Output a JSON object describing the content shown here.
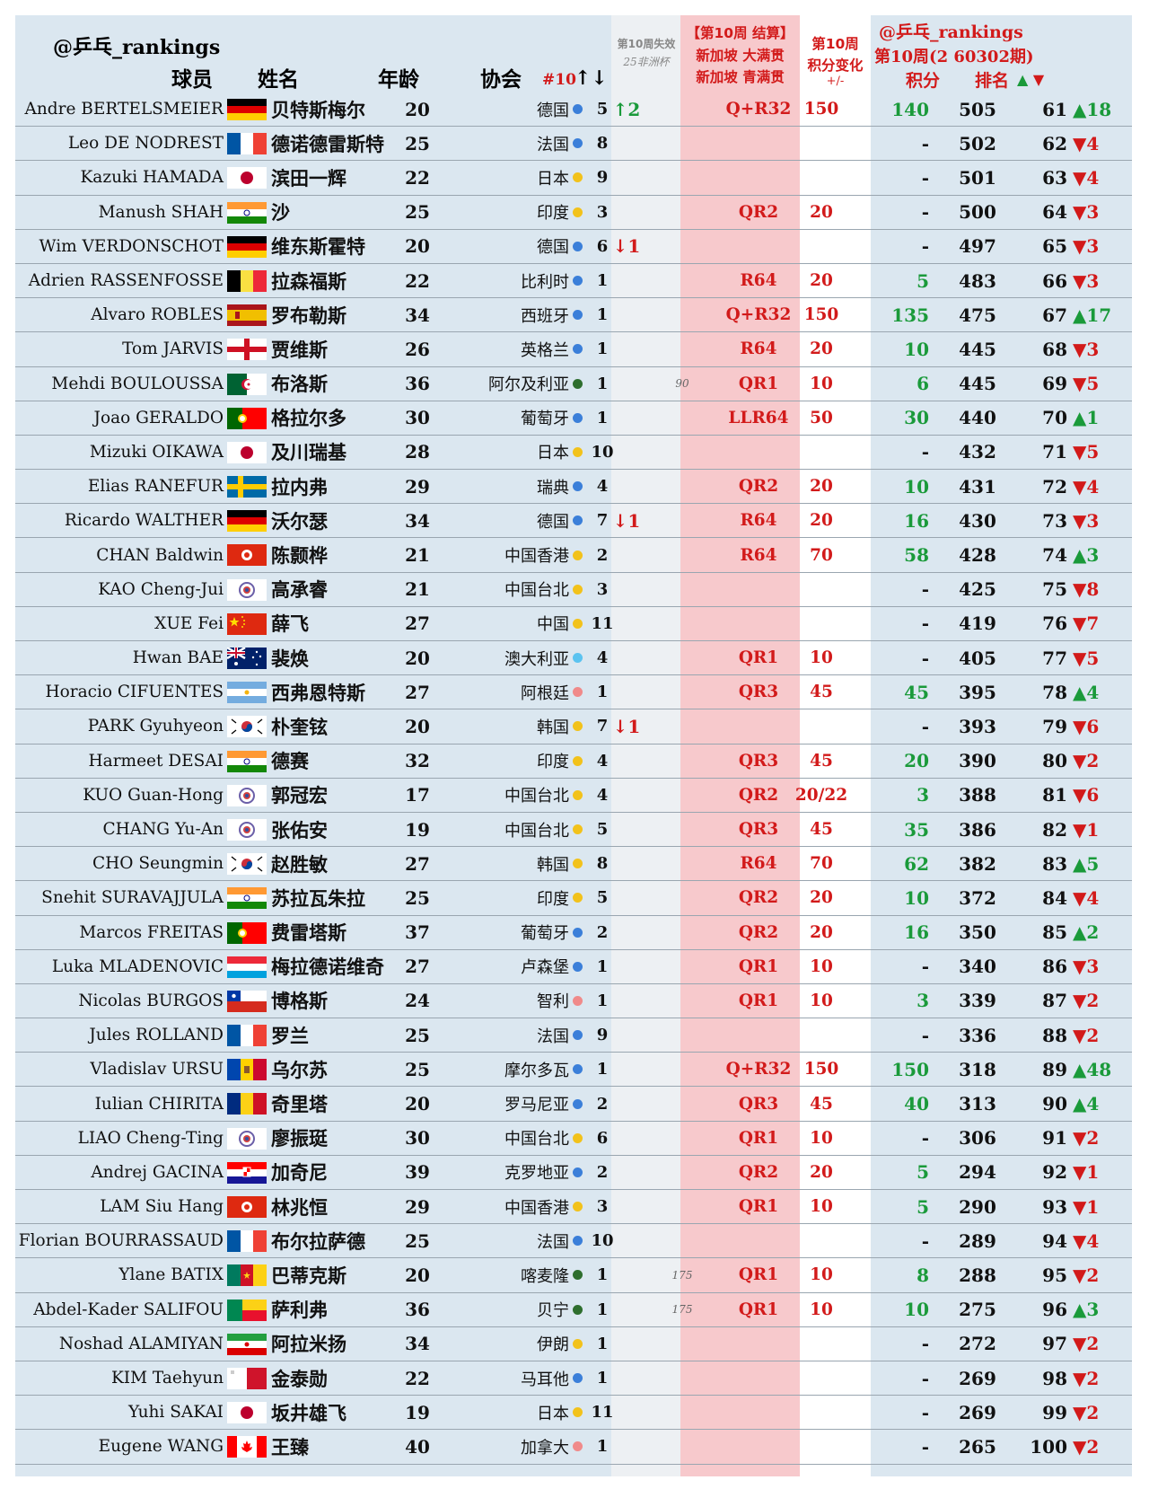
{
  "header": {
    "handle": "@乒乓_rankings",
    "col_player": "球员",
    "col_name": "姓名",
    "col_age": "年龄",
    "col_assoc": "协会",
    "col_wc": "#10",
    "col_wc_arrows": "↑↓",
    "col_expire_1": "第10周失效",
    "col_expire_2": "25非洲杯",
    "col_event_1": "【第10周 结算】",
    "col_event_2": "新加坡 大满贯",
    "col_event_3": "新加坡 青满贯",
    "col_change_1": "第10周",
    "col_change_2": "积分变化",
    "col_change_3": "+/-",
    "right_handle": "@乒乓_rankings",
    "right_week": "第10周(2 60302期)",
    "col_points": "积分",
    "col_rank": "排名",
    "col_rank_arrows": "▲ ▼"
  },
  "colors": {
    "up": "#1a9a3a",
    "down": "#d21a1a",
    "blue_dot": "#3b7fd9",
    "yellow_dot": "#f2c21b",
    "green_dot": "#2e6e2e",
    "pink_dot": "#f08a8a",
    "lightblue_dot": "#5bc3f0"
  },
  "rows": [
    {
      "name": "Andre BERTELSMEIER",
      "flag": "germany",
      "cn": "贝特斯梅尔",
      "age": "20",
      "assoc": "德国",
      "dot": "blue",
      "wc": "5",
      "wcm": "↑2",
      "wcm_dir": "up",
      "af": "",
      "stage": "Q+R32",
      "pts": "150",
      "chg": "140",
      "score": "505",
      "rank": "61",
      "mv": "▲18",
      "mv_dir": "up"
    },
    {
      "name": "Leo DE NODREST",
      "flag": "france",
      "cn": "德诺德雷斯特",
      "age": "25",
      "assoc": "法国",
      "dot": "blue",
      "wc": "8",
      "wcm": "",
      "wcm_dir": "",
      "af": "",
      "stage": "",
      "pts": "",
      "chg": "-",
      "score": "502",
      "rank": "62",
      "mv": "▼4",
      "mv_dir": "down"
    },
    {
      "name": "Kazuki HAMADA",
      "flag": "japan",
      "cn": "滨田一辉",
      "age": "22",
      "assoc": "日本",
      "dot": "yellow",
      "wc": "9",
      "wcm": "",
      "wcm_dir": "",
      "af": "",
      "stage": "",
      "pts": "",
      "chg": "-",
      "score": "501",
      "rank": "63",
      "mv": "▼4",
      "mv_dir": "down"
    },
    {
      "name": "Manush SHAH",
      "flag": "india",
      "cn": "沙",
      "age": "25",
      "assoc": "印度",
      "dot": "yellow",
      "wc": "3",
      "wcm": "",
      "wcm_dir": "",
      "af": "",
      "stage": "QR2",
      "pts": "20",
      "chg": "-",
      "score": "500",
      "rank": "64",
      "mv": "▼3",
      "mv_dir": "down"
    },
    {
      "name": "Wim VERDONSCHOT",
      "flag": "germany",
      "cn": "维东斯霍特",
      "age": "20",
      "assoc": "德国",
      "dot": "blue",
      "wc": "6",
      "wcm": "↓1",
      "wcm_dir": "down",
      "af": "",
      "stage": "",
      "pts": "",
      "chg": "-",
      "score": "497",
      "rank": "65",
      "mv": "▼3",
      "mv_dir": "down"
    },
    {
      "name": "Adrien RASSENFOSSE",
      "flag": "belgium",
      "cn": "拉森福斯",
      "age": "22",
      "assoc": "比利时",
      "dot": "blue",
      "wc": "1",
      "wcm": "",
      "wcm_dir": "",
      "af": "",
      "stage": "R64",
      "pts": "20",
      "chg": "5",
      "score": "483",
      "rank": "66",
      "mv": "▼3",
      "mv_dir": "down"
    },
    {
      "name": "Alvaro ROBLES",
      "flag": "spain",
      "cn": "罗布勒斯",
      "age": "34",
      "assoc": "西班牙",
      "dot": "blue",
      "wc": "1",
      "wcm": "",
      "wcm_dir": "",
      "af": "",
      "stage": "Q+R32",
      "pts": "150",
      "chg": "135",
      "score": "475",
      "rank": "67",
      "mv": "▲17",
      "mv_dir": "up"
    },
    {
      "name": "Tom JARVIS",
      "flag": "england",
      "cn": "贾维斯",
      "age": "26",
      "assoc": "英格兰",
      "dot": "blue",
      "wc": "1",
      "wcm": "",
      "wcm_dir": "",
      "af": "",
      "stage": "R64",
      "pts": "20",
      "chg": "10",
      "score": "445",
      "rank": "68",
      "mv": "▼3",
      "mv_dir": "down"
    },
    {
      "name": "Mehdi BOULOUSSA",
      "flag": "algeria",
      "cn": "布洛斯",
      "age": "36",
      "assoc": "阿尔及利亚",
      "dot": "green",
      "wc": "1",
      "wcm": "",
      "wcm_dir": "",
      "af": "90",
      "stage": "QR1",
      "pts": "10",
      "chg": "6",
      "score": "445",
      "rank": "69",
      "mv": "▼5",
      "mv_dir": "down"
    },
    {
      "name": "Joao GERALDO",
      "flag": "portugal",
      "cn": "格拉尔多",
      "age": "30",
      "assoc": "葡萄牙",
      "dot": "blue",
      "wc": "1",
      "wcm": "",
      "wcm_dir": "",
      "af": "",
      "stage": "LLR64",
      "pts": "50",
      "chg": "30",
      "score": "440",
      "rank": "70",
      "mv": "▲1",
      "mv_dir": "up"
    },
    {
      "name": "Mizuki OIKAWA",
      "flag": "japan",
      "cn": "及川瑞基",
      "age": "28",
      "assoc": "日本",
      "dot": "yellow",
      "wc": "10",
      "wcm": "",
      "wcm_dir": "",
      "af": "",
      "stage": "",
      "pts": "",
      "chg": "-",
      "score": "432",
      "rank": "71",
      "mv": "▼5",
      "mv_dir": "down"
    },
    {
      "name": "Elias RANEFUR",
      "flag": "sweden",
      "cn": "拉内弗",
      "age": "29",
      "assoc": "瑞典",
      "dot": "blue",
      "wc": "4",
      "wcm": "",
      "wcm_dir": "",
      "af": "",
      "stage": "QR2",
      "pts": "20",
      "chg": "10",
      "score": "431",
      "rank": "72",
      "mv": "▼4",
      "mv_dir": "down"
    },
    {
      "name": "Ricardo WALTHER",
      "flag": "germany",
      "cn": "沃尔瑟",
      "age": "34",
      "assoc": "德国",
      "dot": "blue",
      "wc": "7",
      "wcm": "↓1",
      "wcm_dir": "down",
      "af": "",
      "stage": "R64",
      "pts": "20",
      "chg": "16",
      "score": "430",
      "rank": "73",
      "mv": "▼3",
      "mv_dir": "down"
    },
    {
      "name": "CHAN Baldwin",
      "flag": "hongkong",
      "cn": "陈颢桦",
      "age": "21",
      "assoc": "中国香港",
      "dot": "yellow",
      "wc": "2",
      "wcm": "",
      "wcm_dir": "",
      "af": "",
      "stage": "R64",
      "pts": "70",
      "chg": "58",
      "score": "428",
      "rank": "74",
      "mv": "▲3",
      "mv_dir": "up"
    },
    {
      "name": "KAO Cheng-Jui",
      "flag": "taipei",
      "cn": "高承睿",
      "age": "21",
      "assoc": "中国台北",
      "dot": "yellow",
      "wc": "3",
      "wcm": "",
      "wcm_dir": "",
      "af": "",
      "stage": "",
      "pts": "",
      "chg": "-",
      "score": "425",
      "rank": "75",
      "mv": "▼8",
      "mv_dir": "down"
    },
    {
      "name": "XUE Fei",
      "flag": "china",
      "cn": "薛飞",
      "age": "27",
      "assoc": "中国",
      "dot": "yellow",
      "wc": "11",
      "wcm": "",
      "wcm_dir": "",
      "af": "",
      "stage": "",
      "pts": "",
      "chg": "-",
      "score": "419",
      "rank": "76",
      "mv": "▼7",
      "mv_dir": "down"
    },
    {
      "name": "Hwan BAE",
      "flag": "australia",
      "cn": "裴焕",
      "age": "20",
      "assoc": "澳大利亚",
      "dot": "lightblue",
      "wc": "4",
      "wcm": "",
      "wcm_dir": "",
      "af": "",
      "stage": "QR1",
      "pts": "10",
      "chg": "-",
      "score": "405",
      "rank": "77",
      "mv": "▼5",
      "mv_dir": "down"
    },
    {
      "name": "Horacio CIFUENTES",
      "flag": "argentina",
      "cn": "西弗恩特斯",
      "age": "27",
      "assoc": "阿根廷",
      "dot": "pink",
      "wc": "1",
      "wcm": "",
      "wcm_dir": "",
      "af": "",
      "stage": "QR3",
      "pts": "45",
      "chg": "45",
      "score": "395",
      "rank": "78",
      "mv": "▲4",
      "mv_dir": "up"
    },
    {
      "name": "PARK Gyuhyeon",
      "flag": "korea",
      "cn": "朴奎铉",
      "age": "20",
      "assoc": "韩国",
      "dot": "yellow",
      "wc": "7",
      "wcm": "↓1",
      "wcm_dir": "down",
      "af": "",
      "stage": "",
      "pts": "",
      "chg": "-",
      "score": "393",
      "rank": "79",
      "mv": "▼6",
      "mv_dir": "down"
    },
    {
      "name": "Harmeet DESAI",
      "flag": "india",
      "cn": "德赛",
      "age": "32",
      "assoc": "印度",
      "dot": "yellow",
      "wc": "4",
      "wcm": "",
      "wcm_dir": "",
      "af": "",
      "stage": "QR3",
      "pts": "45",
      "chg": "20",
      "score": "390",
      "rank": "80",
      "mv": "▼2",
      "mv_dir": "down"
    },
    {
      "name": "KUO Guan-Hong",
      "flag": "taipei",
      "cn": "郭冠宏",
      "age": "17",
      "assoc": "中国台北",
      "dot": "yellow",
      "wc": "4",
      "wcm": "",
      "wcm_dir": "",
      "af": "",
      "stage": "QR2",
      "pts": "20/22",
      "chg": "3",
      "score": "388",
      "rank": "81",
      "mv": "▼6",
      "mv_dir": "down"
    },
    {
      "name": "CHANG Yu-An",
      "flag": "taipei",
      "cn": "张佑安",
      "age": "19",
      "assoc": "中国台北",
      "dot": "yellow",
      "wc": "5",
      "wcm": "",
      "wcm_dir": "",
      "af": "",
      "stage": "QR3",
      "pts": "45",
      "chg": "35",
      "score": "386",
      "rank": "82",
      "mv": "▼1",
      "mv_dir": "down"
    },
    {
      "name": "CHO Seungmin",
      "flag": "korea",
      "cn": "赵胜敏",
      "age": "27",
      "assoc": "韩国",
      "dot": "yellow",
      "wc": "8",
      "wcm": "",
      "wcm_dir": "",
      "af": "",
      "stage": "R64",
      "pts": "70",
      "chg": "62",
      "score": "382",
      "rank": "83",
      "mv": "▲5",
      "mv_dir": "up"
    },
    {
      "name": "Snehit SURAVAJJULA",
      "flag": "india",
      "cn": "苏拉瓦朱拉",
      "age": "25",
      "assoc": "印度",
      "dot": "yellow",
      "wc": "5",
      "wcm": "",
      "wcm_dir": "",
      "af": "",
      "stage": "QR2",
      "pts": "20",
      "chg": "10",
      "score": "372",
      "rank": "84",
      "mv": "▼4",
      "mv_dir": "down"
    },
    {
      "name": "Marcos FREITAS",
      "flag": "portugal",
      "cn": "费雷塔斯",
      "age": "37",
      "assoc": "葡萄牙",
      "dot": "blue",
      "wc": "2",
      "wcm": "",
      "wcm_dir": "",
      "af": "",
      "stage": "QR2",
      "pts": "20",
      "chg": "16",
      "score": "350",
      "rank": "85",
      "mv": "▲2",
      "mv_dir": "up"
    },
    {
      "name": "Luka MLADENOVIC",
      "flag": "luxembourg",
      "cn": "梅拉德诺维奇",
      "age": "27",
      "assoc": "卢森堡",
      "dot": "blue",
      "wc": "1",
      "wcm": "",
      "wcm_dir": "",
      "af": "",
      "stage": "QR1",
      "pts": "10",
      "chg": "-",
      "score": "340",
      "rank": "86",
      "mv": "▼3",
      "mv_dir": "down"
    },
    {
      "name": "Nicolas BURGOS",
      "flag": "chile",
      "cn": "博格斯",
      "age": "24",
      "assoc": "智利",
      "dot": "pink",
      "wc": "1",
      "wcm": "",
      "wcm_dir": "",
      "af": "",
      "stage": "QR1",
      "pts": "10",
      "chg": "3",
      "score": "339",
      "rank": "87",
      "mv": "▼2",
      "mv_dir": "down"
    },
    {
      "name": "Jules ROLLAND",
      "flag": "france",
      "cn": "罗兰",
      "age": "25",
      "assoc": "法国",
      "dot": "blue",
      "wc": "9",
      "wcm": "",
      "wcm_dir": "",
      "af": "",
      "stage": "",
      "pts": "",
      "chg": "-",
      "score": "336",
      "rank": "88",
      "mv": "▼2",
      "mv_dir": "down"
    },
    {
      "name": "Vladislav URSU",
      "flag": "moldova",
      "cn": "乌尔苏",
      "age": "25",
      "assoc": "摩尔多瓦",
      "dot": "blue",
      "wc": "1",
      "wcm": "",
      "wcm_dir": "",
      "af": "",
      "stage": "Q+R32",
      "pts": "150",
      "chg": "150",
      "score": "318",
      "rank": "89",
      "mv": "▲48",
      "mv_dir": "up"
    },
    {
      "name": "Iulian CHIRITA",
      "flag": "romania",
      "cn": "奇里塔",
      "age": "20",
      "assoc": "罗马尼亚",
      "dot": "blue",
      "wc": "2",
      "wcm": "",
      "wcm_dir": "",
      "af": "",
      "stage": "QR3",
      "pts": "45",
      "chg": "40",
      "score": "313",
      "rank": "90",
      "mv": "▲4",
      "mv_dir": "up"
    },
    {
      "name": "LIAO Cheng-Ting",
      "flag": "taipei",
      "cn": "廖振珽",
      "age": "30",
      "assoc": "中国台北",
      "dot": "yellow",
      "wc": "6",
      "wcm": "",
      "wcm_dir": "",
      "af": "",
      "stage": "QR1",
      "pts": "10",
      "chg": "-",
      "score": "306",
      "rank": "91",
      "mv": "▼2",
      "mv_dir": "down"
    },
    {
      "name": "Andrej GACINA",
      "flag": "croatia",
      "cn": "加奇尼",
      "age": "39",
      "assoc": "克罗地亚",
      "dot": "blue",
      "wc": "2",
      "wcm": "",
      "wcm_dir": "",
      "af": "",
      "stage": "QR2",
      "pts": "20",
      "chg": "5",
      "score": "294",
      "rank": "92",
      "mv": "▼1",
      "mv_dir": "down"
    },
    {
      "name": "LAM Siu Hang",
      "flag": "hongkong",
      "cn": "林兆恒",
      "age": "29",
      "assoc": "中国香港",
      "dot": "yellow",
      "wc": "3",
      "wcm": "",
      "wcm_dir": "",
      "af": "",
      "stage": "QR1",
      "pts": "10",
      "chg": "5",
      "score": "290",
      "rank": "93",
      "mv": "▼1",
      "mv_dir": "down"
    },
    {
      "name": "Florian BOURRASSAUD",
      "flag": "france",
      "cn": "布尔拉萨德",
      "age": "25",
      "assoc": "法国",
      "dot": "blue",
      "wc": "10",
      "wcm": "",
      "wcm_dir": "",
      "af": "",
      "stage": "",
      "pts": "",
      "chg": "-",
      "score": "289",
      "rank": "94",
      "mv": "▼4",
      "mv_dir": "down"
    },
    {
      "name": "Ylane BATIX",
      "flag": "cameroon",
      "cn": "巴蒂克斯",
      "age": "20",
      "assoc": "喀麦隆",
      "dot": "green",
      "wc": "1",
      "wcm": "",
      "wcm_dir": "",
      "af": "175",
      "stage": "QR1",
      "pts": "10",
      "chg": "8",
      "score": "288",
      "rank": "95",
      "mv": "▼2",
      "mv_dir": "down"
    },
    {
      "name": "Abdel-Kader SALIFOU",
      "flag": "benin",
      "cn": "萨利弗",
      "age": "36",
      "assoc": "贝宁",
      "dot": "green",
      "wc": "1",
      "wcm": "",
      "wcm_dir": "",
      "af": "175",
      "stage": "QR1",
      "pts": "10",
      "chg": "10",
      "score": "275",
      "rank": "96",
      "mv": "▲3",
      "mv_dir": "up"
    },
    {
      "name": "Noshad ALAMIYAN",
      "flag": "iran",
      "cn": "阿拉米扬",
      "age": "34",
      "assoc": "伊朗",
      "dot": "yellow",
      "wc": "1",
      "wcm": "",
      "wcm_dir": "",
      "af": "",
      "stage": "",
      "pts": "",
      "chg": "-",
      "score": "272",
      "rank": "97",
      "mv": "▼2",
      "mv_dir": "down"
    },
    {
      "name": "KIM Taehyun",
      "flag": "malta",
      "cn": "金泰勋",
      "age": "22",
      "assoc": "马耳他",
      "dot": "blue",
      "wc": "1",
      "wcm": "",
      "wcm_dir": "",
      "af": "",
      "stage": "",
      "pts": "",
      "chg": "-",
      "score": "269",
      "rank": "98",
      "mv": "▼2",
      "mv_dir": "down"
    },
    {
      "name": "Yuhi SAKAI",
      "flag": "japan",
      "cn": "坂井雄飞",
      "age": "19",
      "assoc": "日本",
      "dot": "yellow",
      "wc": "11",
      "wcm": "",
      "wcm_dir": "",
      "af": "",
      "stage": "",
      "pts": "",
      "chg": "-",
      "score": "269",
      "rank": "99",
      "mv": "▼2",
      "mv_dir": "down"
    },
    {
      "name": "Eugene WANG",
      "flag": "canada",
      "cn": "王臻",
      "age": "40",
      "assoc": "加拿大",
      "dot": "pink",
      "wc": "1",
      "wcm": "",
      "wcm_dir": "",
      "af": "",
      "stage": "",
      "pts": "",
      "chg": "-",
      "score": "265",
      "rank": "100",
      "mv": "▼2",
      "mv_dir": "down"
    }
  ]
}
